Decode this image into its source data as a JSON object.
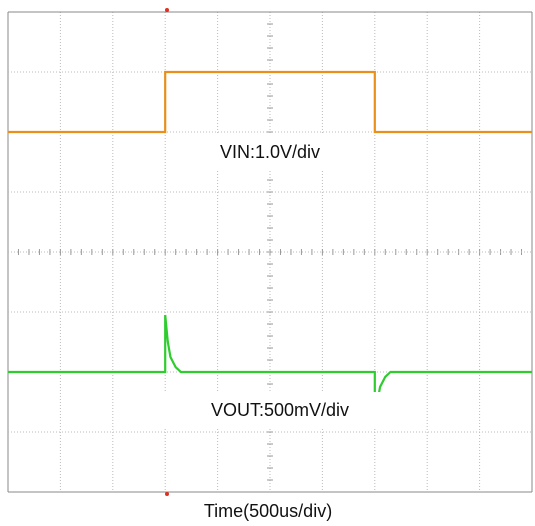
{
  "chart_data": {
    "type": "line",
    "xlabel": "Time(500us/div)",
    "xlim": [
      0,
      10
    ],
    "ylim": [
      0,
      8
    ],
    "xticks": [
      0,
      1,
      2,
      3,
      4,
      5,
      6,
      7,
      8,
      9,
      10
    ],
    "yticks": [
      0,
      1,
      2,
      3,
      4,
      5,
      6,
      7,
      8
    ],
    "grid": true,
    "annotations": [
      "VIN:1.0V/div",
      "VOUT:500mV/div"
    ],
    "series": [
      {
        "color": "#e8901a",
        "x": [
          0,
          3,
          3,
          7,
          7,
          10
        ],
        "values": [
          6,
          6,
          7,
          7,
          6,
          6
        ]
      },
      {
        "color": "#2ecc2e",
        "x": [
          0,
          3,
          3,
          3.05,
          3.1,
          3.2,
          3.3,
          7,
          7,
          7.05,
          7.1,
          7.2,
          7.3,
          10
        ],
        "values": [
          2,
          2,
          2.95,
          2.5,
          2.25,
          2.08,
          2,
          2,
          1.07,
          1.5,
          1.75,
          1.92,
          2,
          2
        ]
      }
    ]
  }
}
